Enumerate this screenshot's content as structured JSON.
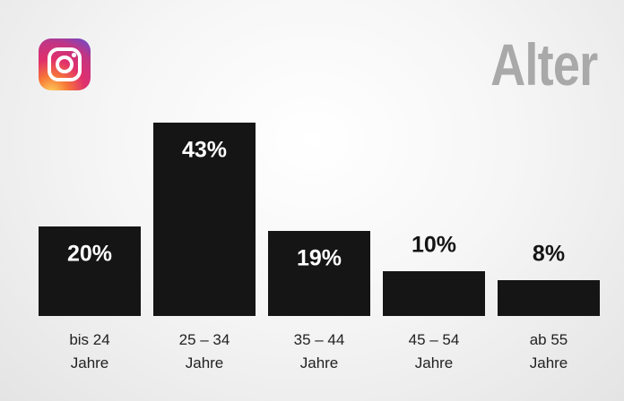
{
  "chart_data": {
    "type": "bar",
    "title": "Alter",
    "categories": [
      "bis 24 Jahre",
      "25 – 34 Jahre",
      "35 – 44 Jahre",
      "45 – 54 Jahre",
      "ab 55 Jahre"
    ],
    "values": [
      20,
      43,
      19,
      10,
      8
    ],
    "value_labels": [
      "20%",
      "43%",
      "19%",
      "10%",
      "8%"
    ],
    "color": "#151515"
  }
}
